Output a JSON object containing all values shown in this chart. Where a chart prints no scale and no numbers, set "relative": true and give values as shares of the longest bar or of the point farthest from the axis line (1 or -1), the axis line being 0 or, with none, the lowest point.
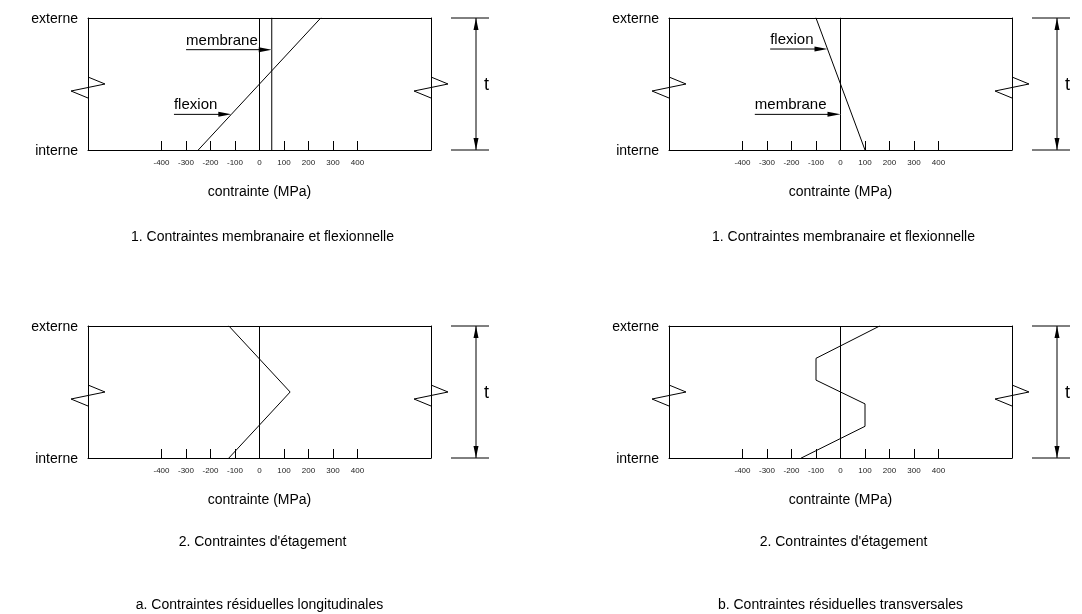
{
  "chart_data": [
    {
      "type": "line",
      "title": "1. Contraintes membranaire et flexionnelle",
      "xlabel": "contrainte (MPa)",
      "ylabel": "t",
      "relative": true,
      "series": [
        {
          "color": "#000000",
          "x": [
            50,
            50,
            50
          ],
          "values": [
            0,
            0.76,
            1
          ]
        },
        {
          "color": "#000000",
          "x": [
            -250,
            -115,
            250
          ],
          "values": [
            0,
            0.27,
            1
          ]
        }
      ],
      "annotations": [
        "interne",
        "externe",
        {
          "text": "membrane",
          "x": 50,
          "y": 0.76
        },
        {
          "text": "flexion",
          "x": -115,
          "y": 0.27
        }
      ],
      "ref_lines": [
        {
          "axis": "x",
          "value": 0,
          "color": "#000000"
        }
      ],
      "xlim": [
        -700,
        700
      ],
      "xticks": [
        -400,
        -300,
        -200,
        -100,
        0,
        100,
        200,
        300,
        400
      ]
    },
    {
      "type": "line",
      "title": "1. Contraintes membranaire et flexionnelle",
      "xlabel": "contrainte (MPa)",
      "ylabel": "t",
      "relative": true,
      "series": [
        {
          "color": "#000000",
          "x": [
            0,
            0,
            0
          ],
          "values": [
            0,
            0.27,
            1
          ]
        },
        {
          "color": "#000000",
          "x": [
            100,
            -53,
            -100
          ],
          "values": [
            0,
            0.765,
            1
          ]
        }
      ],
      "annotations": [
        "interne",
        "externe",
        {
          "text": "flexion",
          "x": -53,
          "y": 0.765
        },
        {
          "text": "membrane",
          "x": 0,
          "y": 0.27
        }
      ],
      "xlim": [
        -700,
        700
      ],
      "xticks": [
        -400,
        -300,
        -200,
        -100,
        0,
        100,
        200,
        300,
        400
      ]
    },
    {
      "type": "line",
      "title": "2. Contraintes d'étagement",
      "xlabel": "contrainte (MPa)",
      "ylabel": "t",
      "relative": true,
      "series": [
        {
          "color": "#000000",
          "x": [
            -125,
            125,
            -125
          ],
          "values": [
            0,
            0.5,
            1
          ]
        }
      ],
      "annotations": [
        "interne",
        "externe",
        "a. Contraintes résiduelles longitudinales"
      ],
      "ref_lines": [
        {
          "axis": "x",
          "value": 0,
          "color": "#000000"
        }
      ],
      "xlim": [
        -700,
        700
      ],
      "xticks": [
        -400,
        -300,
        -200,
        -100,
        0,
        100,
        200,
        300,
        400
      ]
    },
    {
      "type": "line",
      "title": "2. Contraintes d'étagement",
      "xlabel": "contrainte (MPa)",
      "ylabel": "t",
      "relative": true,
      "series": [
        {
          "color": "#000000",
          "x": [
            -160,
            100,
            100,
            -100,
            -100,
            160
          ],
          "values": [
            0,
            0.24,
            0.41,
            0.59,
            0.755,
            1
          ]
        }
      ],
      "annotations": [
        "interne",
        "externe",
        "b. Contraintes résiduelles transversales"
      ],
      "ref_lines": [
        {
          "axis": "x",
          "value": 0,
          "color": "#000000"
        }
      ],
      "xlim": [
        -700,
        700
      ],
      "xticks": [
        -400,
        -300,
        -200,
        -100,
        0,
        100,
        200,
        300,
        400
      ]
    }
  ]
}
